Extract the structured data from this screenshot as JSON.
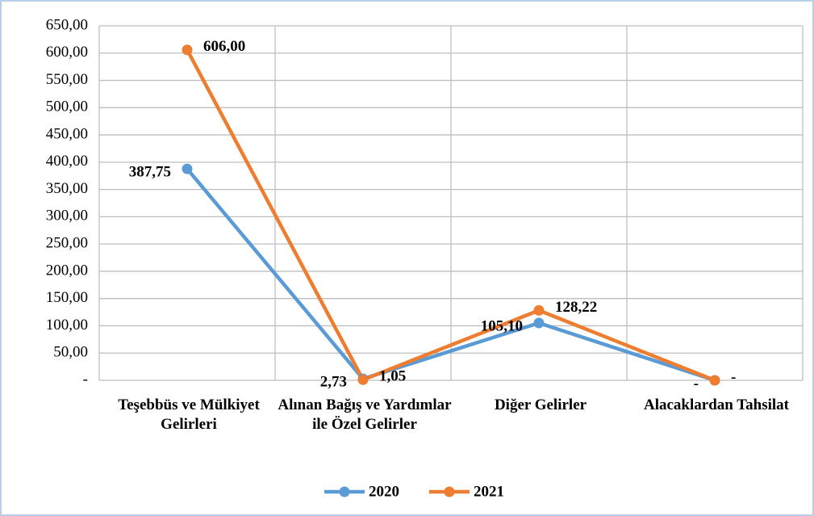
{
  "chart_data": {
    "type": "line",
    "categories": [
      "Teşebbüs ve Mülkiyet Gelirleri",
      "Alınan Bağış ve Yardımlar ile Özel Gelirler",
      "Diğer Gelirler",
      "Alacaklardan Tahsilat"
    ],
    "series": [
      {
        "name": "2020",
        "color": "#5b9bd5",
        "values": [
          387.75,
          2.73,
          105.1,
          0
        ],
        "value_labels": [
          "387,75",
          "2,73",
          "105,10",
          "-"
        ]
      },
      {
        "name": "2021",
        "color": "#ed7d31",
        "values": [
          606.0,
          1.05,
          128.22,
          0
        ],
        "value_labels": [
          "606,00",
          "1,05",
          "128,22",
          "-"
        ]
      }
    ],
    "ylim": [
      0,
      650
    ],
    "yticks": [
      {
        "value": 0,
        "label": "-"
      },
      {
        "value": 50,
        "label": "50,00"
      },
      {
        "value": 100,
        "label": "100,00"
      },
      {
        "value": 150,
        "label": "150,00"
      },
      {
        "value": 200,
        "label": "200,00"
      },
      {
        "value": 250,
        "label": "250,00"
      },
      {
        "value": 300,
        "label": "300,00"
      },
      {
        "value": 350,
        "label": "350,00"
      },
      {
        "value": 400,
        "label": "400,00"
      },
      {
        "value": 450,
        "label": "450,00"
      },
      {
        "value": 500,
        "label": "500,00"
      },
      {
        "value": 550,
        "label": "550,00"
      },
      {
        "value": 600,
        "label": "600,00"
      },
      {
        "value": 650,
        "label": "650,00"
      }
    ],
    "grid": true,
    "legend": "bottom"
  }
}
